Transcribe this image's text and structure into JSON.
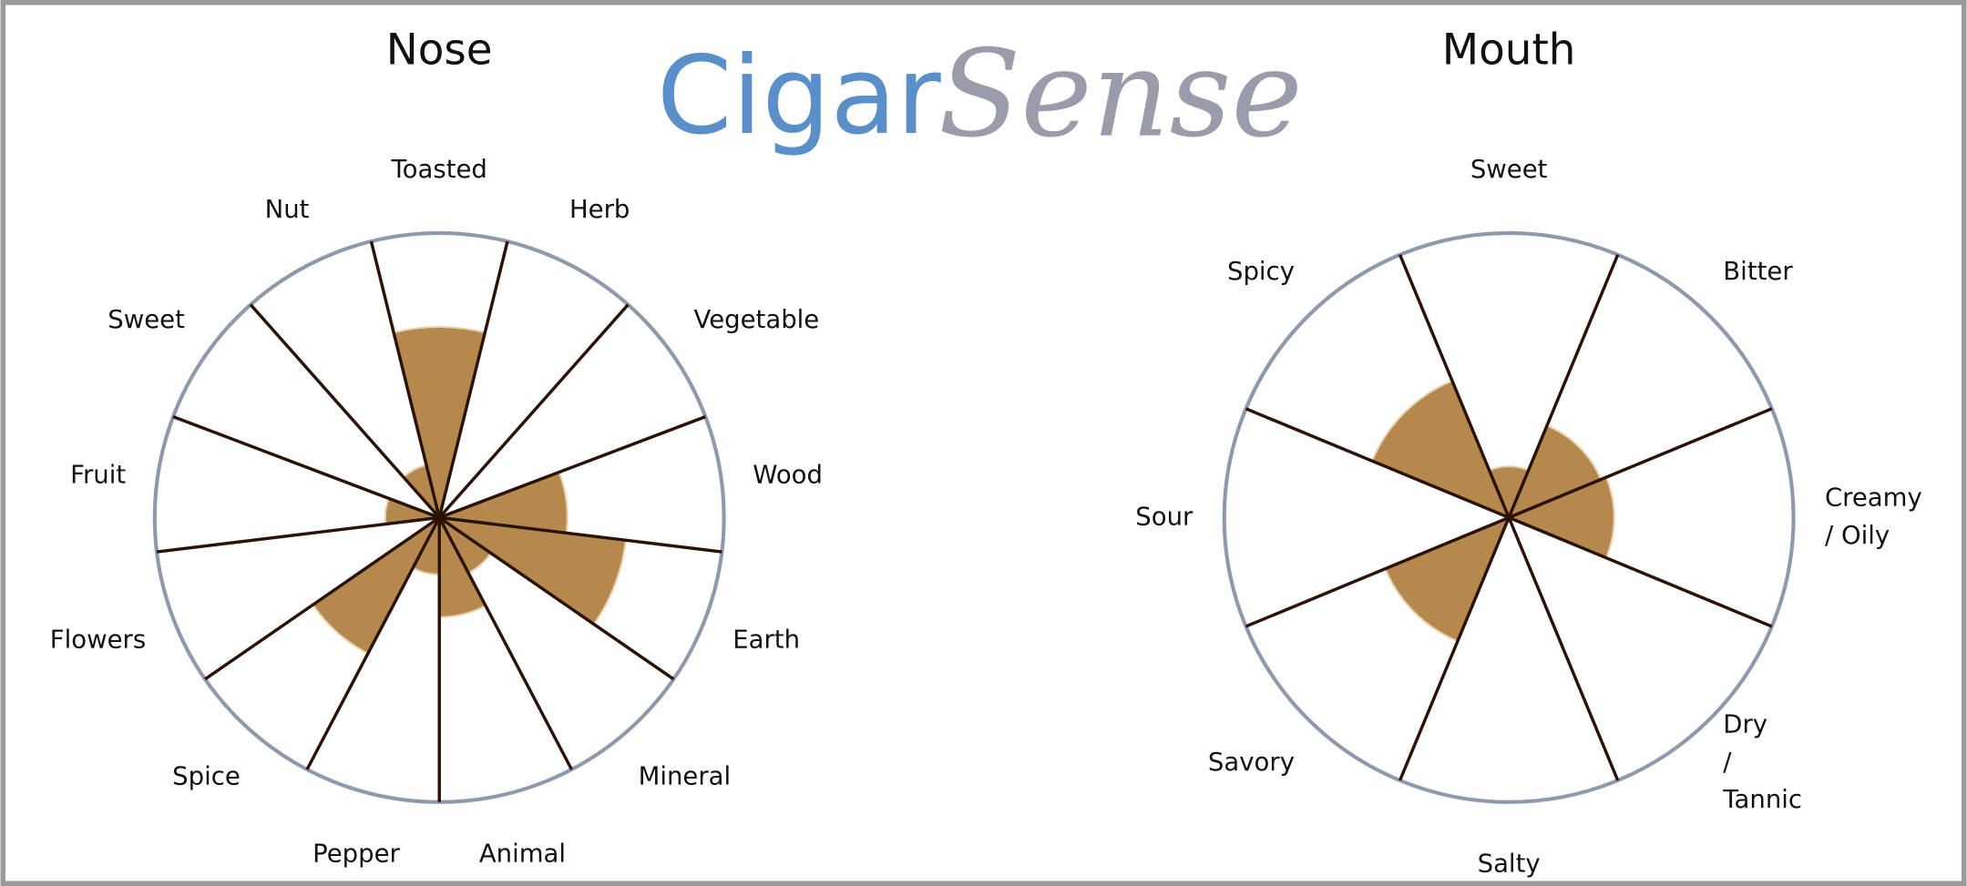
{
  "logo": {
    "left": "Cigar",
    "right": "Sense"
  },
  "chart_data": [
    {
      "type": "polar",
      "title": "Nose",
      "categories": [
        [
          "Toasted"
        ],
        [
          "Herb"
        ],
        [
          "Vegetable"
        ],
        [
          "Wood"
        ],
        [
          "Earth"
        ],
        [
          "Mineral"
        ],
        [
          "Animal"
        ],
        [
          "Pepper"
        ],
        [
          "Spice"
        ],
        [
          "Flowers"
        ],
        [
          "Fruit"
        ],
        [
          "Sweet"
        ],
        [
          "Nut"
        ]
      ],
      "values": [
        6.7,
        0,
        0,
        4.5,
        6.6,
        2.2,
        3.5,
        2,
        5.4,
        0,
        1.9,
        0,
        1.9
      ],
      "rlim": [
        0,
        10
      ],
      "color": "#b5884e"
    },
    {
      "type": "polar",
      "title": "Mouth",
      "categories": [
        [
          "Sweet"
        ],
        [
          "Bitter"
        ],
        [
          "Creamy",
          "/ Oily"
        ],
        [
          "Dry",
          "/",
          "Tannic"
        ],
        [
          "Salty"
        ],
        [
          "Savory"
        ],
        [
          "Sour"
        ],
        [
          "Spicy"
        ]
      ],
      "values": [
        1.8,
        3.5,
        3.7,
        0,
        0,
        4.7,
        0,
        5.2
      ],
      "rlim": [
        0,
        10
      ],
      "color": "#b5884e"
    }
  ]
}
